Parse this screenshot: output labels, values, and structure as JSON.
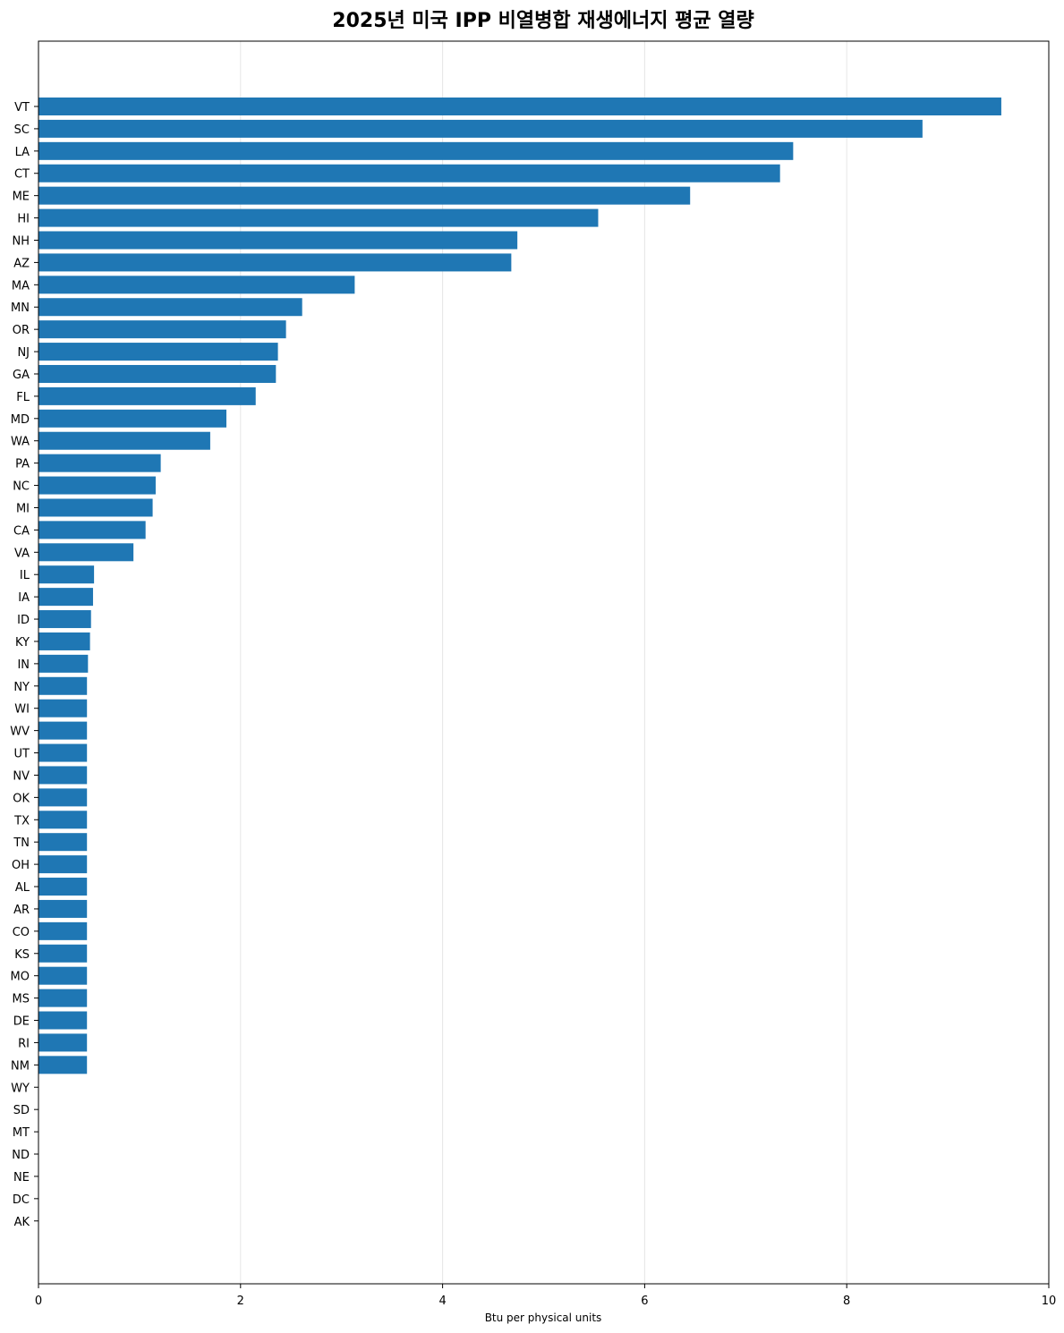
{
  "chart_data": {
    "type": "bar",
    "orientation": "horizontal",
    "title": "2025년 미국 IPP 비열병합 재생에너지 평균 열량",
    "xlabel": "Btu per physical units",
    "ylabel": "",
    "xlim": [
      0,
      10
    ],
    "xticks": [
      0,
      2,
      4,
      6,
      8,
      10
    ],
    "grid": "vertical",
    "color": "#1f77b4",
    "categories": [
      "VT",
      "SC",
      "LA",
      "CT",
      "ME",
      "HI",
      "NH",
      "AZ",
      "MA",
      "MN",
      "OR",
      "NJ",
      "GA",
      "FL",
      "MD",
      "WA",
      "PA",
      "NC",
      "MI",
      "CA",
      "VA",
      "IL",
      "IA",
      "ID",
      "KY",
      "IN",
      "NY",
      "WI",
      "WV",
      "UT",
      "NV",
      "OK",
      "TX",
      "TN",
      "OH",
      "AL",
      "AR",
      "CO",
      "KS",
      "MO",
      "MS",
      "DE",
      "RI",
      "NM",
      "WY",
      "SD",
      "MT",
      "ND",
      "NE",
      "DC",
      "AK"
    ],
    "values": [
      9.53,
      8.75,
      7.47,
      7.34,
      6.45,
      5.54,
      4.74,
      4.68,
      3.13,
      2.61,
      2.45,
      2.37,
      2.35,
      2.15,
      1.86,
      1.7,
      1.21,
      1.16,
      1.13,
      1.06,
      0.94,
      0.55,
      0.54,
      0.52,
      0.51,
      0.49,
      0.48,
      0.48,
      0.48,
      0.48,
      0.48,
      0.48,
      0.48,
      0.48,
      0.48,
      0.48,
      0.48,
      0.48,
      0.48,
      0.48,
      0.48,
      0.48,
      0.48,
      0.48,
      0,
      0,
      0,
      0,
      0,
      0,
      0
    ]
  }
}
